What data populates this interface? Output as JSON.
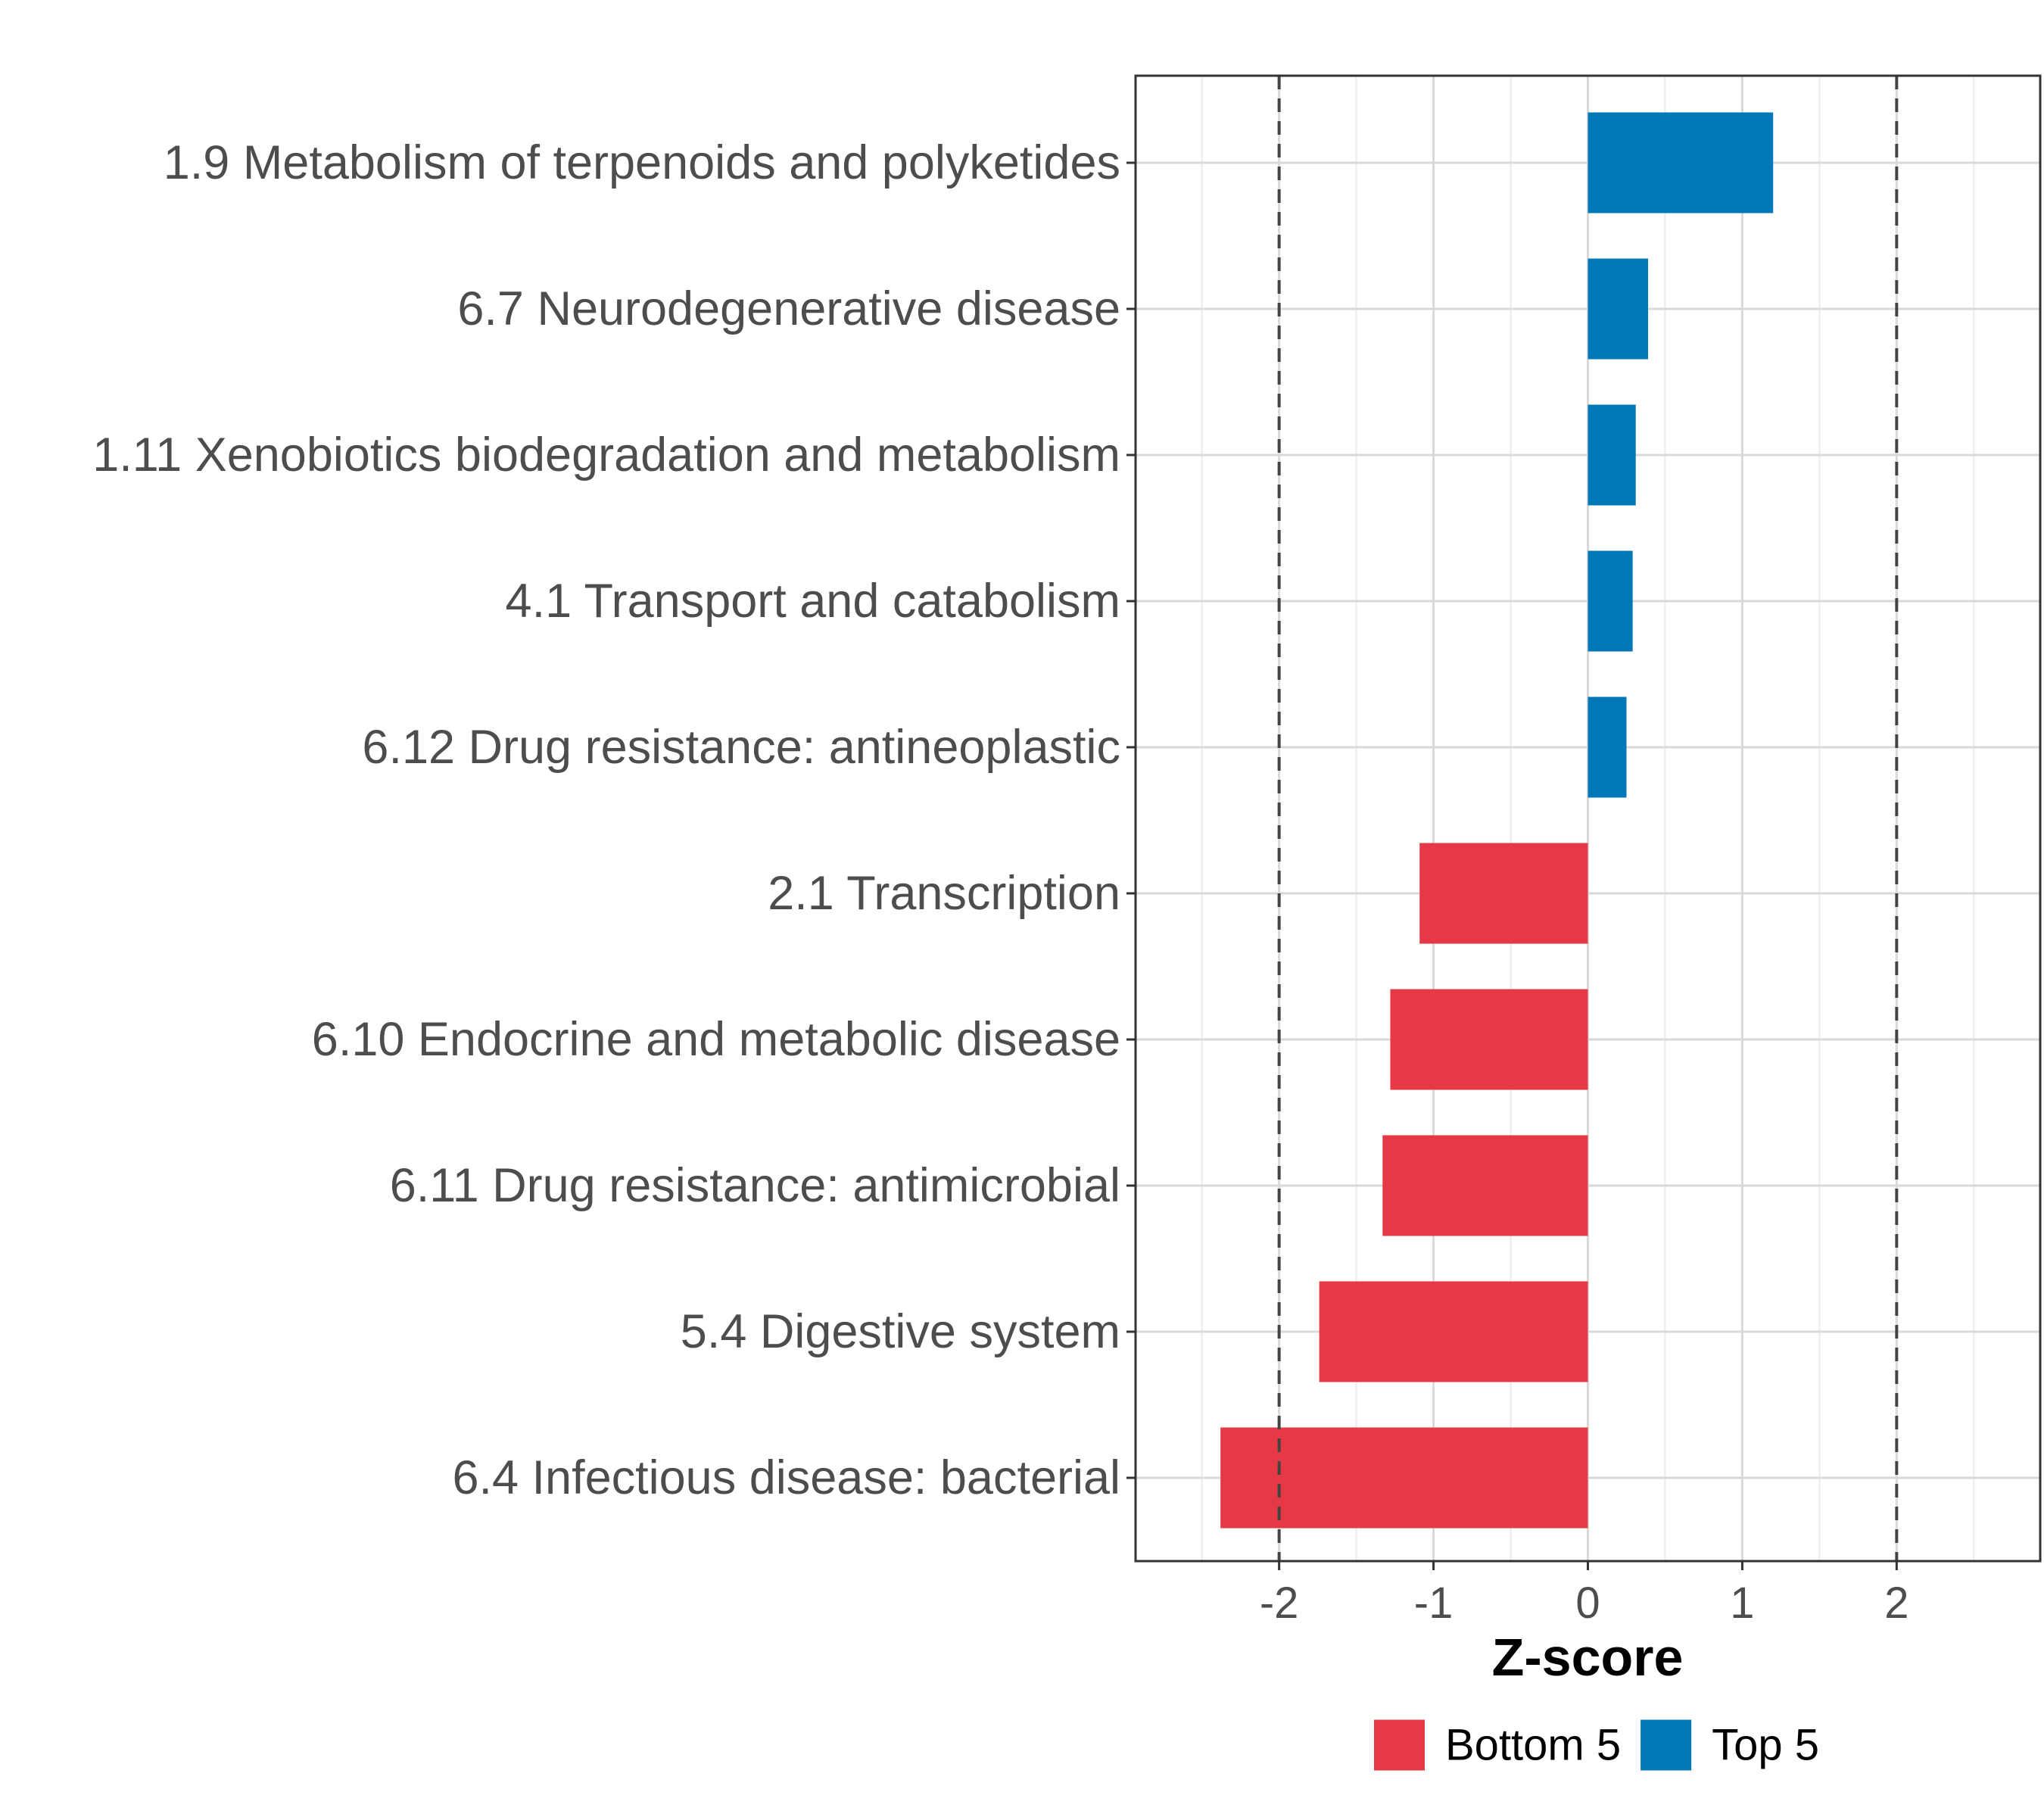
{
  "chart_data": {
    "type": "bar",
    "orientation": "horizontal",
    "categories": [
      "1.9 Metabolism of terpenoids and polyketides",
      "6.7 Neurodegenerative disease",
      "1.11 Xenobiotics biodegradation and metabolism",
      "4.1 Transport and catabolism",
      "6.12 Drug resistance: antineoplastic",
      "2.1 Transcription",
      "6.10 Endocrine and metabolic disease",
      "6.11 Drug resistance: antimicrobial",
      "5.4 Digestive system",
      "6.4 Infectious disease: bacterial"
    ],
    "values": [
      1.2,
      0.39,
      0.31,
      0.29,
      0.25,
      -1.09,
      -1.28,
      -1.33,
      -1.74,
      -2.38
    ],
    "groups": [
      "Top 5",
      "Top 5",
      "Top 5",
      "Top 5",
      "Top 5",
      "Bottom 5",
      "Bottom 5",
      "Bottom 5",
      "Bottom 5",
      "Bottom 5"
    ],
    "xlabel": "Z-score",
    "ylabel": "",
    "xlim": [
      -2.93,
      2.93
    ],
    "xticks": [
      -2,
      -1,
      0,
      1,
      2
    ],
    "xtick_labels": [
      "-2",
      "-1",
      "0",
      "1",
      "2"
    ],
    "reference_lines": [
      -2,
      2
    ],
    "grid": true,
    "legend": {
      "position": "bottom",
      "entries": [
        {
          "label": "Bottom 5",
          "color": "#e63946"
        },
        {
          "label": "Top 5",
          "color": "#0077b6"
        }
      ]
    },
    "colors": {
      "Top 5": "#0077b6",
      "Bottom 5": "#e63946"
    }
  }
}
